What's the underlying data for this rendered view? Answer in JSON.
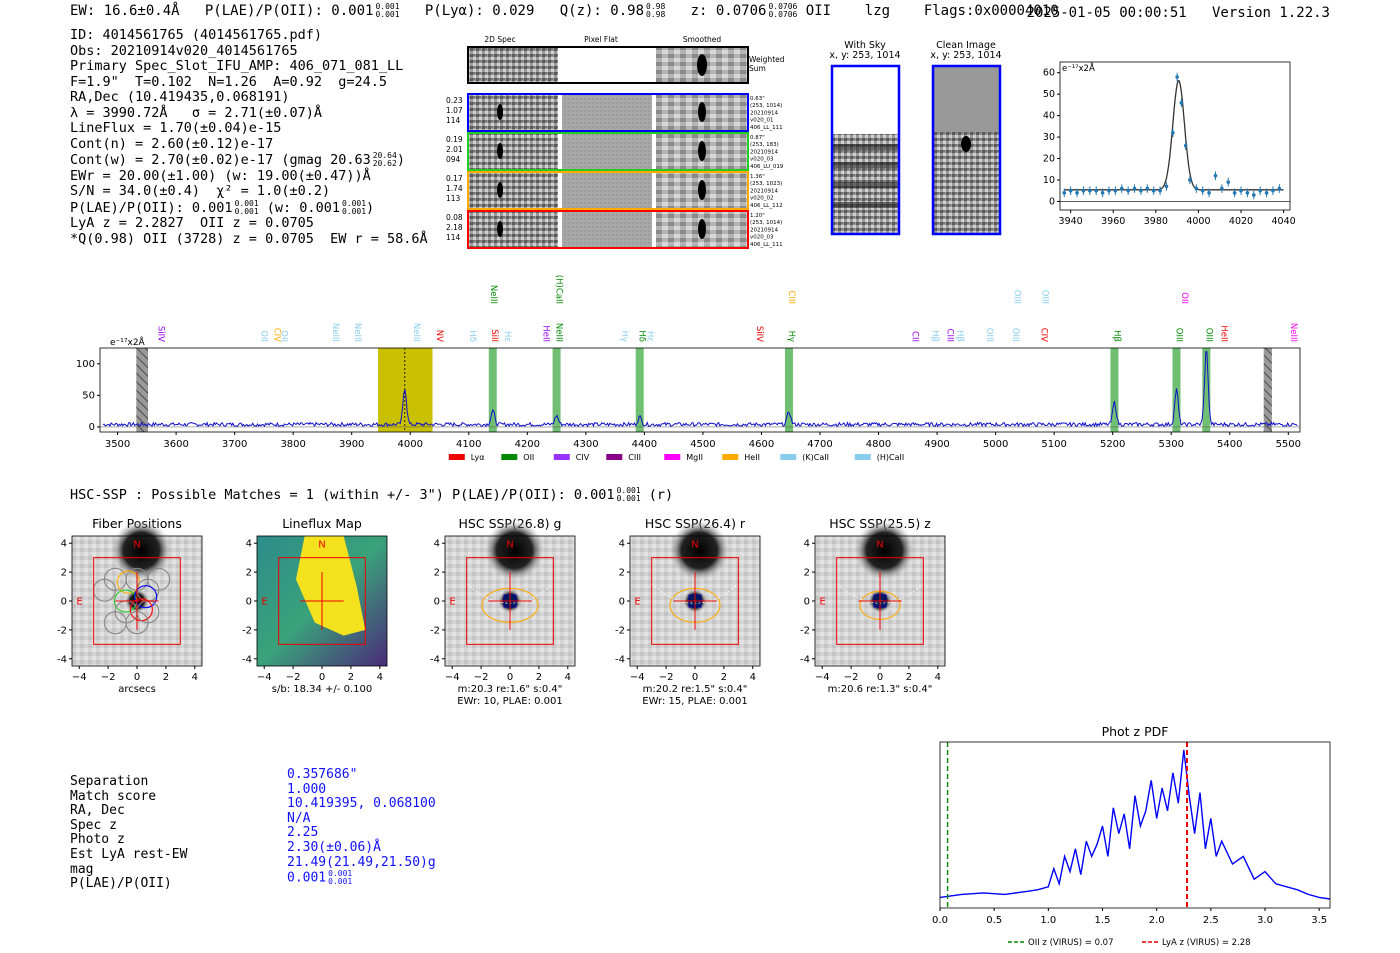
{
  "header": {
    "ew": "EW: 16.6±0.4Å",
    "plae_label": "P(LAE)/P(OII): 0.001",
    "plae_hi": "0.001",
    "plae_lo": "0.001",
    "plya": "P(Lyα): 0.029",
    "qz_label": "Q(z): 0.98",
    "qz_hi": "0.98",
    "qz_lo": "0.98",
    "z_label": "z: 0.0706",
    "z_hi": "0.0706",
    "z_lo": "0.0706",
    "z_line": "OII",
    "lzg": "lzg",
    "flags": "Flags:0x00004010",
    "timestamp": "2025-01-05 00:00:51",
    "version": "Version 1.22.3"
  },
  "info": {
    "id": "ID: 4014561765 (4014561765.pdf)",
    "obs": "Obs: 20210914v020_4014561765",
    "slot": "Primary Spec_Slot_IFU_AMP: 406_071_081_LL",
    "params": "F=1.9\"  T=0.102  N=1.26  A=0.92  g=24.5",
    "radec": "RA,Dec (10.419435,0.068191)",
    "lambda": "λ = 3990.72Å   σ = 2.71(±0.07)Å",
    "lineflux": "LineFlux = 1.70(±0.04)e-15",
    "contn": "Cont(n) = 2.60(±0.12)e-17",
    "contw": "Cont(w) = 2.70(±0.02)e-17 (gmag 20.63",
    "contw_hi": "20.64",
    "contw_lo": "20.62",
    "ewr": "EWr = 20.00(±1.00) (w: 19.00(±0.47))Å",
    "sn": "S/N = 34.0(±0.4)  χ² = 1.0(±0.2)",
    "plae": "P(LAE)/P(OII): 0.001",
    "plae_hi": "0.001",
    "plae_lo": "0.001",
    "plae_w": "(w: 0.001",
    "plae_w_hi": "0.001",
    "plae_w_lo": "0.001",
    "lya_oii": "LyA z = 2.2827  OII z = 0.0705",
    "q_line": "*Q(0.98) OII (3728) z = 0.0705  EW r = 58.6Å"
  },
  "cutouts": {
    "col_headers": [
      "2D Spec",
      "Pixel Flat",
      "Smoothed"
    ],
    "weighted_sum": "Weighted Sum",
    "rows": [
      {
        "left": [
          "0.23",
          "1.07",
          "114"
        ],
        "right": [
          "0.63\"",
          "(253, 1014)",
          "20210914",
          "v020_01",
          "406_LL_111"
        ],
        "color": "#0000ff"
      },
      {
        "left": [
          "0.19",
          "2.01",
          "094"
        ],
        "right": [
          "0.87\"",
          "(253, 183)",
          "20210914",
          "v020_03",
          "406_LU_019"
        ],
        "color": "#22cc22"
      },
      {
        "left": [
          "0.17",
          "1.74",
          "113"
        ],
        "right": [
          "1.36\"",
          "(253, 1023)",
          "20210914",
          "v020_02",
          "406_LL_112"
        ],
        "color": "#ffaa00"
      },
      {
        "left": [
          "0.08",
          "2.18",
          "114"
        ],
        "right": [
          "1.20\"",
          "(253, 1014)",
          "20210914",
          "v020_03",
          "406_LL_111"
        ],
        "color": "#ff0000"
      }
    ],
    "with_sky": "With Sky",
    "with_sky_xy": "x, y: 253, 1014",
    "clean_image": "Clean Image",
    "clean_xy": "x, y: 253, 1014"
  },
  "zoom_plot": {
    "ylabel": "e⁻¹⁷x2Å",
    "xticks": [
      3940,
      3960,
      3980,
      4000,
      4020,
      4040
    ],
    "yticks": [
      0,
      10,
      20,
      30,
      40,
      50,
      60
    ],
    "xlim": [
      3935,
      4043
    ],
    "ylim": [
      -4,
      65
    ],
    "fit_center": 3990.72,
    "fit_sigma": 2.71,
    "fit_amp": 51,
    "fit_cont": 5.4,
    "color_data": "#1f77b4",
    "color_fit": "#333333"
  },
  "full_spec": {
    "ylabel": "e⁻¹⁷x2Å",
    "xticks": [
      3500,
      3600,
      3700,
      3800,
      3900,
      4000,
      4100,
      4200,
      4300,
      4400,
      4500,
      4600,
      4700,
      4800,
      4900,
      5000,
      5100,
      5200,
      5300,
      5400,
      5500
    ],
    "yticks": [
      0,
      50,
      100
    ],
    "xlim": [
      3470,
      5520
    ],
    "ylim": [
      -8,
      125
    ],
    "highlight_band": [
      3945,
      4038
    ],
    "highlight_center": 3990.72,
    "main_peak": 58,
    "hatched": [
      [
        3532,
        3552
      ],
      [
        5458,
        5472
      ]
    ],
    "green_bands": [
      {
        "x": 4141,
        "peak": 22
      },
      {
        "x": 4250,
        "peak": 14
      },
      {
        "x": 4392,
        "peak": 12
      },
      {
        "x": 4647,
        "peak": 20
      },
      {
        "x": 5203,
        "peak": 35
      },
      {
        "x": 5309,
        "peak": 55
      },
      {
        "x": 5360,
        "peak": 120
      }
    ],
    "line_labels": [
      {
        "text": "SiIV",
        "x": 3570,
        "color": "#9900ee",
        "level": 0
      },
      {
        "text": "OII",
        "x": 3746,
        "color": "#88ccee",
        "level": 0
      },
      {
        "text": "CIV",
        "x": 3768,
        "color": "#ffaa00",
        "level": 0
      },
      {
        "text": "OII",
        "x": 3780,
        "color": "#88ccee",
        "level": 0
      },
      {
        "text": "NeIII",
        "x": 3868,
        "color": "#88ccee",
        "level": 0
      },
      {
        "text": "NeIII",
        "x": 3906,
        "color": "#88ccee",
        "level": 0
      },
      {
        "text": "NeIII",
        "x": 4006,
        "color": "#88ccee",
        "level": 0
      },
      {
        "text": "NV",
        "x": 4046,
        "color": "#ee0000",
        "level": 0
      },
      {
        "text": "Hδ",
        "x": 4102,
        "color": "#88ccee",
        "level": 0
      },
      {
        "text": "SiII",
        "x": 4140,
        "color": "#ee0000",
        "level": 0
      },
      {
        "text": "Hε",
        "x": 4162,
        "color": "#88ccee",
        "level": 0
      },
      {
        "text": "NeIII",
        "x": 4138,
        "color": "#008800",
        "level": 1
      },
      {
        "text": "HeII",
        "x": 4228,
        "color": "#9900ee",
        "level": 0
      },
      {
        "text": "NeIII",
        "x": 4250,
        "color": "#008800",
        "level": 0
      },
      {
        "text": "(H)CaII",
        "x": 4250,
        "color": "#008800",
        "level": 1
      },
      {
        "text": "Hγ",
        "x": 4362,
        "color": "#88ccee",
        "level": 0
      },
      {
        "text": "Hδ",
        "x": 4392,
        "color": "#008800",
        "level": 0
      },
      {
        "text": "Hε",
        "x": 4405,
        "color": "#88ccee",
        "level": 0
      },
      {
        "text": "SiIV",
        "x": 4592,
        "color": "#ee0000",
        "level": 0
      },
      {
        "text": "Hγ",
        "x": 4647,
        "color": "#008800",
        "level": 0
      },
      {
        "text": "CIII",
        "x": 4647,
        "color": "#ffaa00",
        "level": 1
      },
      {
        "text": "CII",
        "x": 4858,
        "color": "#9900ee",
        "level": 0
      },
      {
        "text": "Hβ",
        "x": 4892,
        "color": "#88ccee",
        "level": 0
      },
      {
        "text": "CIII",
        "x": 4918,
        "color": "#9900ee",
        "level": 0
      },
      {
        "text": "Hβ",
        "x": 4935,
        "color": "#88ccee",
        "level": 0
      },
      {
        "text": "OIII",
        "x": 4985,
        "color": "#88ccee",
        "level": 0
      },
      {
        "text": "OIII",
        "x": 5030,
        "color": "#88ccee",
        "level": 0
      },
      {
        "text": "OIII",
        "x": 5032,
        "color": "#88ccee",
        "level": 1
      },
      {
        "text": "CIV",
        "x": 5078,
        "color": "#ee0000",
        "level": 0
      },
      {
        "text": "OIII",
        "x": 5080,
        "color": "#88ccee",
        "level": 1
      },
      {
        "text": "Hβ",
        "x": 5203,
        "color": "#008800",
        "level": 0
      },
      {
        "text": "OIII",
        "x": 5309,
        "color": "#008800",
        "level": 0
      },
      {
        "text": "OII",
        "x": 5318,
        "color": "#ee00ee",
        "level": 1
      },
      {
        "text": "OIII",
        "x": 5360,
        "color": "#008800",
        "level": 0
      },
      {
        "text": "HeII",
        "x": 5386,
        "color": "#ee0000",
        "level": 0
      },
      {
        "text": "NeIII",
        "x": 5505,
        "color": "#ee00ee",
        "level": 0
      }
    ],
    "legend": [
      {
        "label": "Lyα",
        "color": "#ee0000"
      },
      {
        "label": "OII",
        "color": "#008800"
      },
      {
        "label": "CIV",
        "color": "#9933ff"
      },
      {
        "label": "CIII",
        "color": "#880088"
      },
      {
        "label": "MgII",
        "color": "#ff00ff"
      },
      {
        "label": "HeII",
        "color": "#ffaa00"
      },
      {
        "label": "(K)CaII",
        "color": "#88ccee"
      },
      {
        "label": "(H)CaII",
        "color": "#88ccee"
      }
    ]
  },
  "match_line": {
    "text": "HSC-SSP : Possible Matches = 1 (within +/- 3\")  P(LAE)/P(OII): 0.001",
    "hi": "0.001",
    "lo": "0.001",
    "suffix": "(r)"
  },
  "panels": [
    {
      "title": "Fiber Positions",
      "caption1": "arcsecs",
      "caption2": "",
      "kind": "fiber"
    },
    {
      "title": "Lineflux Map",
      "caption1": "s/b: 18.34 +/- 0.100",
      "caption2": "",
      "kind": "flux"
    },
    {
      "title": "HSC SSP(26.8) g",
      "caption1": "m:20.3  re:1.6\"  s:0.4\"",
      "caption2": "EWr: 10, PLAE: 0.001",
      "kind": "hsc"
    },
    {
      "title": "HSC SSP(26.4) r",
      "caption1": "m:20.2  re:1.5\"  s:0.4\"",
      "caption2": "EWr: 15, PLAE: 0.001",
      "kind": "hsc"
    },
    {
      "title": "HSC SSP(25.5) z",
      "caption1": "m:20.6  re:1.3\"  s:0.4\"",
      "caption2": "",
      "kind": "hsc"
    }
  ],
  "panel_axes": {
    "ticks": [
      -4,
      -2,
      0,
      2,
      4
    ],
    "xticks": [
      -4,
      -2,
      0,
      2,
      4
    ],
    "north": "N",
    "east": "E"
  },
  "match_table": {
    "rows": [
      {
        "label": "Separation",
        "value": "0.357686\""
      },
      {
        "label": "Match score",
        "value": "1.000"
      },
      {
        "label": "RA, Dec",
        "value": "10.419395, 0.068100"
      },
      {
        "label": "Spec z",
        "value": "N/A"
      },
      {
        "label": "Photo z",
        "value": "2.25"
      },
      {
        "label": "Est LyA rest-EW",
        "value": "2.30(±0.06)Å"
      },
      {
        "label": "mag",
        "value": "21.49(21.49,21.50)g"
      },
      {
        "label": "P(LAE)/P(OII)",
        "value": "0.001"
      }
    ],
    "plae_hi": "0.001",
    "plae_lo": "0.001"
  },
  "chart_data": [
    {
      "type": "line",
      "title": "",
      "xlabel": "",
      "ylabel": "e⁻¹⁷x2Å",
      "xlim": [
        3935,
        4043
      ],
      "ylim": [
        -4,
        65
      ],
      "series": [
        {
          "values_x": [
            3937,
            3940,
            3943,
            3946,
            3949,
            3952,
            3955,
            3958,
            3961,
            3964,
            3967,
            3970,
            3973,
            3976,
            3979,
            3982,
            3985,
            3988,
            3990,
            3992,
            3994,
            3996,
            3999,
            4002,
            4005,
            4008,
            4011,
            4014,
            4017,
            4020,
            4023,
            4026,
            4029,
            4032,
            4035,
            4038
          ],
          "values": [
            4,
            5,
            4,
            5,
            5,
            5,
            4,
            5,
            5,
            6,
            5,
            6,
            5,
            6,
            5,
            5,
            7,
            32,
            58,
            46,
            26,
            10,
            6,
            5,
            4,
            12,
            6,
            9,
            4,
            5,
            4,
            3,
            5,
            4,
            5,
            6
          ]
        }
      ]
    },
    {
      "type": "line",
      "title": "",
      "xlabel": "",
      "ylabel": "e⁻¹⁷x2Å",
      "xlim": [
        3470,
        5520
      ],
      "ylim": [
        -8,
        125
      ],
      "series": [
        {
          "values_x": [
            3990.72
          ],
          "values": [
            58
          ]
        }
      ]
    },
    {
      "type": "line",
      "title": "Phot z PDF",
      "xlabel": "",
      "ylabel": "",
      "xlim": [
        0.0,
        3.6
      ],
      "ylim": [
        0,
        1
      ],
      "xticks": [
        0.0,
        0.5,
        1.0,
        1.5,
        2.0,
        2.5,
        3.0,
        3.5
      ],
      "vlines": [
        {
          "x": 0.07,
          "color": "#008800",
          "label": "OII z (VIRUS) = 0.07"
        },
        {
          "x": 2.28,
          "color": "#ee0000",
          "label": "LyA z (VIRUS) = 2.28"
        }
      ],
      "series": [
        {
          "name": "",
          "x": [
            0.0,
            0.2,
            0.4,
            0.6,
            0.8,
            0.9,
            1.0,
            1.05,
            1.1,
            1.15,
            1.2,
            1.25,
            1.3,
            1.35,
            1.4,
            1.45,
            1.5,
            1.55,
            1.6,
            1.65,
            1.7,
            1.75,
            1.8,
            1.85,
            1.9,
            1.95,
            2.0,
            2.05,
            2.1,
            2.15,
            2.2,
            2.25,
            2.3,
            2.35,
            2.4,
            2.45,
            2.5,
            2.55,
            2.6,
            2.7,
            2.8,
            2.9,
            3.0,
            3.1,
            3.2,
            3.3,
            3.4,
            3.5,
            3.6
          ],
          "values": [
            0.03,
            0.05,
            0.06,
            0.05,
            0.07,
            0.08,
            0.1,
            0.22,
            0.12,
            0.3,
            0.2,
            0.35,
            0.18,
            0.4,
            0.3,
            0.38,
            0.5,
            0.3,
            0.62,
            0.45,
            0.58,
            0.35,
            0.7,
            0.5,
            0.6,
            0.8,
            0.55,
            0.75,
            0.6,
            0.85,
            0.65,
            1.0,
            0.7,
            0.45,
            0.72,
            0.35,
            0.55,
            0.3,
            0.4,
            0.25,
            0.3,
            0.15,
            0.2,
            0.12,
            0.1,
            0.08,
            0.05,
            0.03,
            0.02
          ],
          "color": "#0000ff"
        }
      ]
    }
  ]
}
